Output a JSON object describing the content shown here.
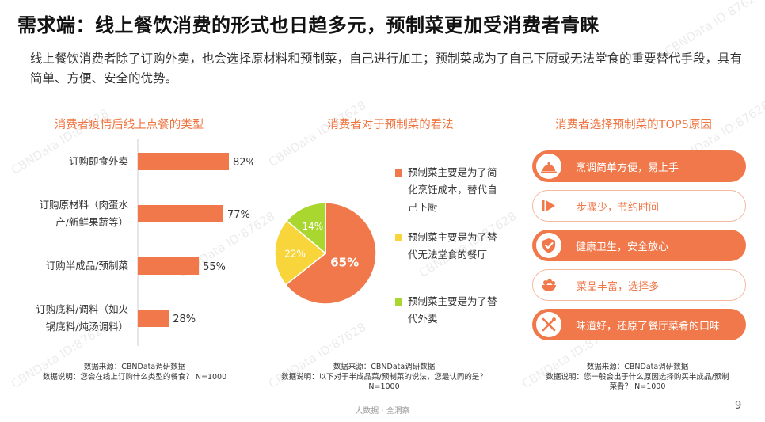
{
  "header": {
    "title": "需求端：线上餐饮消费的形式也日趋多元，预制菜更加受消费者青睐",
    "subtitle": "线上餐饮消费者除了订购外卖，也会选择原材料和预制菜，自己进行加工；预制菜成为了自己下厨或无法堂食的重要替代手段，具有简单、方便、安全的优势。"
  },
  "watermark": "CBNData ID:87628",
  "colors": {
    "accent": "#f0784a",
    "yellow": "#f8d53a",
    "green": "#a9d72f"
  },
  "chart_data": [
    {
      "type": "bar",
      "orientation": "horizontal",
      "title": "消费者疫情后线上点餐的类型",
      "categories": [
        "订购即食外卖",
        "订购原材料（肉蛋水产/新鲜果蔬等）",
        "订购半成品/预制菜",
        "订购底料/调料（如火锅底料/炖汤调料）"
      ],
      "category_lines": [
        [
          "订购即食外卖"
        ],
        [
          "订购原材料（肉蛋水",
          "产/新鲜果蔬等）"
        ],
        [
          "订购半成品/预制菜"
        ],
        [
          "订购底料/调料（如火",
          "锅底料/炖汤调料）"
        ]
      ],
      "values": [
        82,
        77,
        55,
        28
      ],
      "data_labels": [
        "82%",
        "77%",
        "55%",
        "28%"
      ],
      "xlim": [
        0,
        100
      ],
      "color": "#f0784a"
    },
    {
      "type": "pie",
      "title": "消费者对于预制菜的看法",
      "slices": [
        {
          "label": "预制菜主要是为了简化烹饪成本，替代自己下厨",
          "label_lines": [
            "预制菜主要是为了简",
            "化烹饪成本，替代自",
            "己下厨"
          ],
          "value": 65,
          "display": "65%",
          "color": "#f0784a"
        },
        {
          "label": "预制菜主要是为了替代无法堂食的餐厅",
          "label_lines": [
            "预制菜主要是为了替",
            "代无法堂食的餐厅"
          ],
          "value": 22,
          "display": "22%",
          "color": "#f8d53a"
        },
        {
          "label": "预制菜主要是为了替代外卖",
          "label_lines": [
            "预制菜主要是为了替",
            "代外卖"
          ],
          "value": 14,
          "display": "14%",
          "color": "#a9d72f"
        }
      ]
    }
  ],
  "reasons": {
    "title": "消费者选择预制菜的TOP5原因",
    "items": [
      {
        "icon": "cloche-icon",
        "label": "烹调简单方便，易上手",
        "highlight": true
      },
      {
        "icon": "fast-forward-icon",
        "label": "步骤少，节约时间",
        "highlight": false
      },
      {
        "icon": "shield-check-icon",
        "label": "健康卫生，安全放心",
        "highlight": true
      },
      {
        "icon": "salad-bowl-icon",
        "label": "菜品丰富，选择多",
        "highlight": false
      },
      {
        "icon": "fork-knife-icon",
        "label": "味道好，还原了餐厅菜肴的口味",
        "highlight": true
      }
    ]
  },
  "sources": {
    "bar": {
      "line1": "数据来源：CBNData调研数据",
      "line2": "数据说明：您会在线上订购什么类型的餐食？ N=1000"
    },
    "pie": {
      "line1": "数据来源：CBNData调研数据",
      "line2": "数据说明：以下对于半成品菜/预制菜的说法，您最认同的是？",
      "line3": "N=1000"
    },
    "reasons": {
      "line1": "数据来源：CBNData调研数据",
      "line2": "数据说明：您一般会出于什么原因选择购买半成品/预制",
      "line3": "菜肴？ N=1000"
    }
  },
  "footer": {
    "text": "大数据 · 全洞察",
    "page": "9"
  }
}
